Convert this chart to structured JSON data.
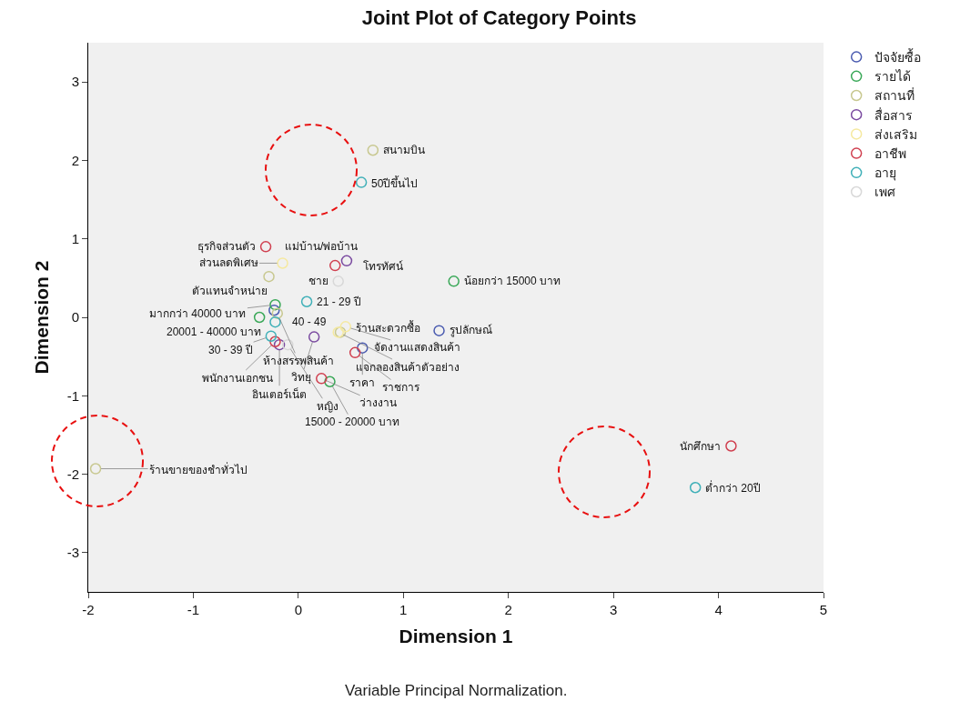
{
  "chart_data": {
    "type": "scatter",
    "title": "Joint Plot of Category Points",
    "xlabel": "Dimension 1",
    "ylabel": "Dimension 2",
    "xlim": [
      -2,
      5
    ],
    "ylim": [
      -3.5,
      3.5
    ],
    "xticks": [
      -2,
      -1,
      0,
      1,
      2,
      3,
      4,
      5
    ],
    "yticks": [
      -3,
      -2,
      -1,
      0,
      1,
      2,
      3
    ],
    "grid": false,
    "legend": "top right",
    "marker": "circle",
    "series": [
      {
        "name": "ปัจจัยซื้อ",
        "color": "#4a5bb0",
        "x": [
          1.34,
          0.61,
          -0.23
        ],
        "values": [
          -0.17,
          -0.39,
          0.09
        ]
      },
      {
        "name": "รายได้",
        "color": "#3aa858",
        "x": [
          1.48,
          -0.22,
          -0.37,
          0.3
        ],
        "values": [
          0.46,
          0.16,
          0.0,
          -0.82
        ]
      },
      {
        "name": "สถานที่",
        "color": "#c8c890",
        "x": [
          0.71,
          -1.93,
          -0.28,
          -0.2,
          0.4
        ],
        "values": [
          2.13,
          -1.93,
          0.52,
          0.05,
          -0.19
        ]
      },
      {
        "name": "สื่อสาร",
        "color": "#7a4aa0",
        "x": [
          0.46,
          0.15,
          -0.18
        ],
        "values": [
          0.72,
          -0.25,
          -0.35
        ]
      },
      {
        "name": "ส่งเสริม",
        "color": "#f5e9a0",
        "x": [
          -0.15,
          0.45,
          0.38
        ],
        "values": [
          0.69,
          -0.12,
          -0.19
        ]
      },
      {
        "name": "อาชีพ",
        "color": "#d04050",
        "x": [
          4.12,
          -0.31,
          0.35,
          -0.22,
          0.54,
          0.22
        ],
        "values": [
          -1.64,
          0.9,
          0.66,
          -0.31,
          -0.45,
          -0.78
        ]
      },
      {
        "name": "อายุ",
        "color": "#40b0b8",
        "x": [
          0.6,
          3.78,
          0.08,
          -0.26,
          -0.22
        ],
        "values": [
          1.72,
          -2.17,
          0.2,
          -0.24,
          -0.06
        ]
      },
      {
        "name": "เพศ",
        "color": "#d8d8d8",
        "x": [
          0.38,
          -0.1
        ],
        "values": [
          0.46,
          -0.35
        ]
      }
    ],
    "annotations": [
      {
        "text": "สนามบิน",
        "x": 0.71,
        "y": 2.13
      },
      {
        "text": "50ปีขึ้นไป",
        "x": 0.6,
        "y": 1.72
      },
      {
        "text": "ร้านขายของชำทั่วไป",
        "x": -1.93,
        "y": -1.93
      },
      {
        "text": "นักศึกษา",
        "x": 4.12,
        "y": -1.64
      },
      {
        "text": "ต่ำกว่า 20ปี",
        "x": 3.78,
        "y": -2.17
      },
      {
        "text": "ธุรกิจส่วนตัว",
        "x": -0.31,
        "y": 0.9
      },
      {
        "text": "แม่บ้าน/พ่อบ้าน",
        "x": 0.35,
        "y": 0.66
      },
      {
        "text": "ส่วนลดพิเศษ",
        "x": -0.15,
        "y": 0.69
      },
      {
        "text": "ชาย",
        "x": 0.38,
        "y": 0.46
      },
      {
        "text": "ตัวแทนจำหน่าย",
        "x": -0.28,
        "y": 0.52
      },
      {
        "text": "โทรทัศน์",
        "x": 0.46,
        "y": 0.72
      },
      {
        "text": "น้อยกว่า 15000 บาท",
        "x": 1.48,
        "y": 0.46
      },
      {
        "text": "มากกว่า 40000 บาท",
        "x": -0.22,
        "y": 0.16
      },
      {
        "text": "20001 - 40000 บาท",
        "x": -0.37,
        "y": 0.0
      },
      {
        "text": "21 - 29 ปี",
        "x": 0.08,
        "y": 0.2
      },
      {
        "text": "จัดงานแสดงสินค้า",
        "x": 0.45,
        "y": -0.12
      },
      {
        "text": "ห้างสรรพสินค้า",
        "x": -0.2,
        "y": 0.05
      },
      {
        "text": "ร้านสะดวกซื้อ",
        "x": 0.4,
        "y": -0.19
      },
      {
        "text": "แจกลองสินค้าตัวอย่าง",
        "x": 0.38,
        "y": -0.19
      },
      {
        "text": "รูปลักษณ์",
        "x": 1.34,
        "y": -0.17
      },
      {
        "text": "30 - 39 ปี",
        "x": -0.26,
        "y": -0.24
      },
      {
        "text": "40 - 49",
        "x": -0.22,
        "y": -0.06
      },
      {
        "text": "วิทยุ",
        "x": 0.15,
        "y": -0.25
      },
      {
        "text": "ราคา",
        "x": 0.61,
        "y": -0.39
      },
      {
        "text": "พนักงานเอกชน",
        "x": -0.22,
        "y": -0.31
      },
      {
        "text": "อินเตอร์เน็ต",
        "x": -0.18,
        "y": -0.35
      },
      {
        "text": "หญิง",
        "x": -0.1,
        "y": -0.35
      },
      {
        "text": "ราชการ",
        "x": 0.54,
        "y": -0.45
      },
      {
        "text": "ว่างงาน",
        "x": 0.22,
        "y": -0.78
      },
      {
        "text": "15000 - 20000 บาท",
        "x": 0.3,
        "y": -0.82
      },
      "Variable Principal Normalization."
    ]
  }
}
